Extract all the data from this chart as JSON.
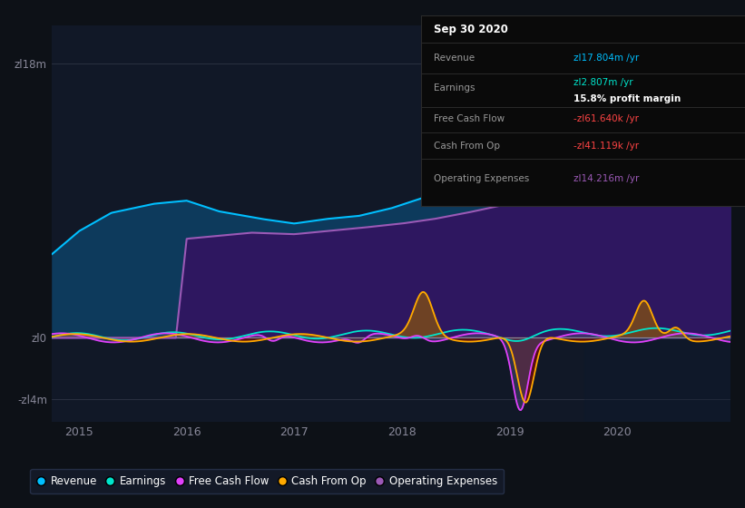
{
  "background_color": "#0d1117",
  "plot_bg_color": "#111827",
  "revenue_color": "#00bfff",
  "earnings_color": "#00e5cc",
  "fcf_color": "#e040fb",
  "cashfromop_color": "#ffaa00",
  "opex_color": "#9b59b6",
  "rev_fill_color": "#0d3a5c",
  "opex_fill_color": "#2e1760",
  "cop_fill_pos_color": "#7a4a1a",
  "cop_fill_neg_color": "#5c1a1a",
  "fcf_fill_color": "#555577",
  "legend_bg": "#151c2c",
  "legend_edge": "#2a3550",
  "info_bg": "#0a0a0a",
  "info_edge": "#2a2a2a",
  "grid_color": "#2a3040",
  "zero_line_color": "#888899",
  "tick_color": "#888899",
  "legend_items": [
    {
      "label": "Revenue",
      "color": "#00bfff"
    },
    {
      "label": "Earnings",
      "color": "#00e5cc"
    },
    {
      "label": "Free Cash Flow",
      "color": "#e040fb"
    },
    {
      "label": "Cash From Op",
      "color": "#ffaa00"
    },
    {
      "label": "Operating Expenses",
      "color": "#9b59b6"
    }
  ],
  "info_box": {
    "date": "Sep 30 2020",
    "revenue_label": "Revenue",
    "revenue_val": "zl17.804m /yr",
    "revenue_color": "#00bfff",
    "earnings_label": "Earnings",
    "earnings_val": "zl2.807m /yr",
    "earnings_color": "#00e5cc",
    "profit_margin": "15.8% profit margin",
    "fcf_label": "Free Cash Flow",
    "fcf_val": "-zl61.640k /yr",
    "fcf_color": "#ff4444",
    "cop_label": "Cash From Op",
    "cop_val": "-zl41.119k /yr",
    "cop_color": "#ff4444",
    "opex_label": "Operating Expenses",
    "opex_val": "zl14.216m /yr",
    "opex_color": "#9b59b6"
  }
}
